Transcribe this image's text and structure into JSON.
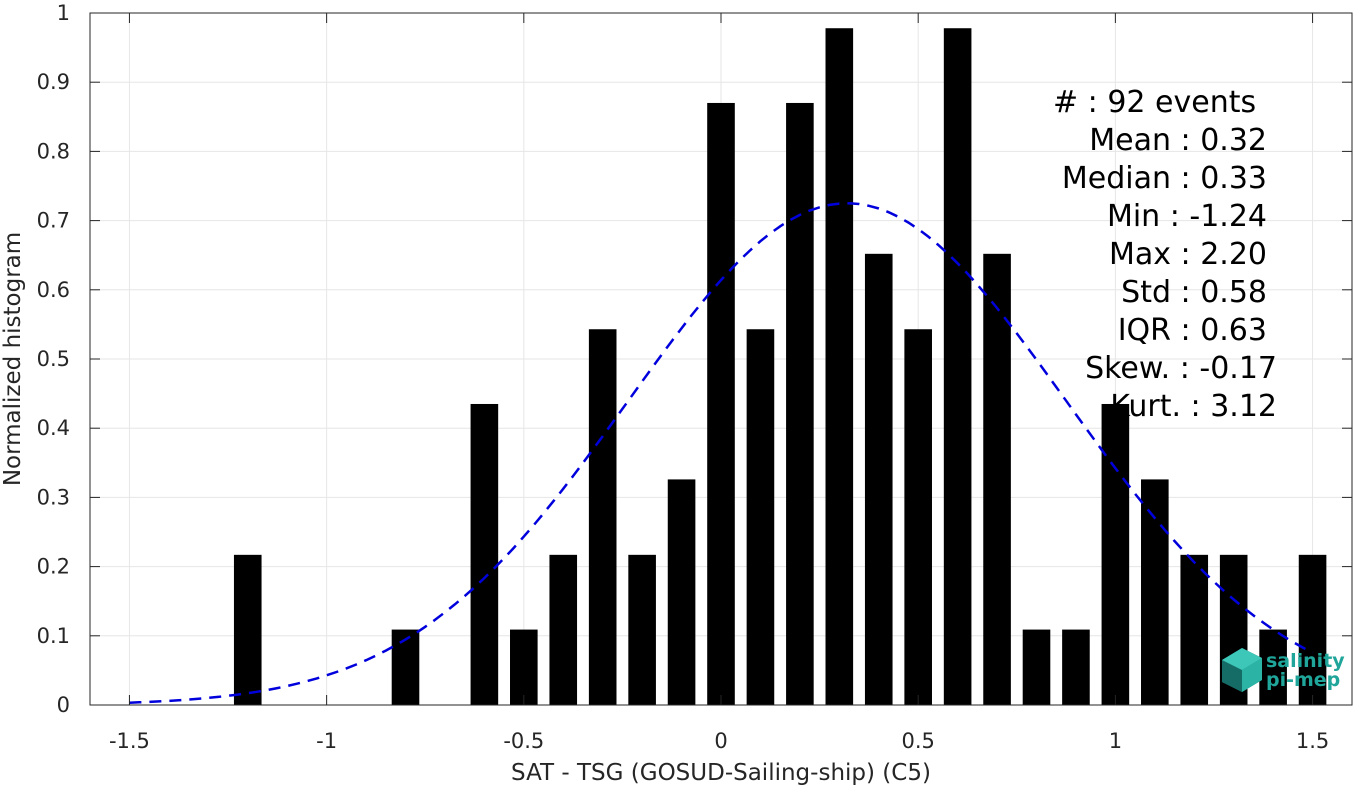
{
  "chart_data": {
    "type": "bar",
    "xlabel": "SAT - TSG (GOSUD-Sailing-ship) (C5)",
    "ylabel": "Normalized histogram",
    "xlim": [
      -1.6,
      1.6
    ],
    "ylim": [
      0,
      1
    ],
    "xticks": [
      -1.5,
      -1,
      -0.5,
      0,
      0.5,
      1,
      1.5
    ],
    "xtick_labels": [
      "-1.5",
      "-1",
      "-0.5",
      "0",
      "0.5",
      "1",
      "1.5"
    ],
    "yticks": [
      0,
      0.1,
      0.2,
      0.3,
      0.4,
      0.5,
      0.6,
      0.7,
      0.8,
      0.9,
      1
    ],
    "ytick_labels": [
      "0",
      "0.1",
      "0.2",
      "0.3",
      "0.4",
      "0.5",
      "0.6",
      "0.7",
      "0.8",
      "0.9",
      "1"
    ],
    "grid": true,
    "bar_color": "#000000",
    "bar_width": 0.07,
    "series": [
      {
        "x": [
          -1.2,
          -0.8,
          -0.6,
          -0.5,
          -0.4,
          -0.3,
          -0.2,
          -0.1,
          0.0,
          0.1,
          0.2,
          0.3,
          0.4,
          0.5,
          0.6,
          0.7,
          0.8,
          0.9,
          1.0,
          1.1,
          1.2,
          1.3,
          1.4,
          1.5
        ],
        "values": [
          0.217,
          0.109,
          0.435,
          0.109,
          0.217,
          0.543,
          0.217,
          0.326,
          0.87,
          0.543,
          0.87,
          0.978,
          0.652,
          0.543,
          0.978,
          0.652,
          0.109,
          0.109,
          0.435,
          0.326,
          0.217,
          0.217,
          0.109,
          0.217
        ]
      }
    ],
    "fit_curve": {
      "style": "dashed",
      "color": "#0000dd",
      "mean": 0.32,
      "peak": 0.725,
      "sigma": 0.555,
      "x_range": [
        -1.5,
        1.5
      ]
    },
    "stats_lines": [
      "#  : 92 events",
      "Mean : 0.32",
      "Median : 0.33",
      "Min : -1.24",
      "Max : 2.20",
      "Std : 0.58",
      "IQR : 0.63",
      "Skew. : -0.17",
      "Kurt. : 3.12"
    ]
  },
  "logo": {
    "line1": "salinity",
    "line2": "pi-mep",
    "color": "#1fa59a"
  }
}
